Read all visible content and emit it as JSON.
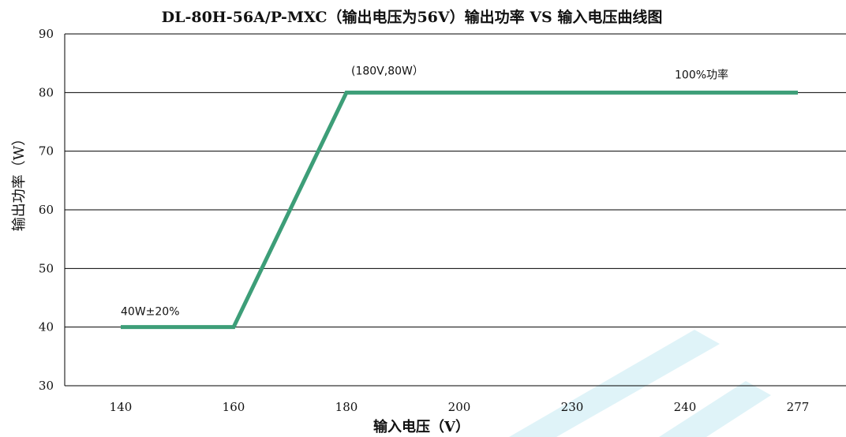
{
  "chart_data": {
    "type": "line",
    "title": "DL-80H-56A/P-MXC（输出电压为56V）输出功率 VS 输入电压曲线图",
    "xlabel": "输入电压（V）",
    "ylabel": "输出功率（W）",
    "categories": [
      "140",
      "160",
      "180",
      "200",
      "230",
      "240",
      "277"
    ],
    "ylim": [
      30,
      90
    ],
    "yticks": [
      "30",
      "40",
      "50",
      "60",
      "70",
      "80",
      "90"
    ],
    "grid": true,
    "series": [
      {
        "values": [
          {
            "x": "140",
            "y": 40
          },
          {
            "x": "160",
            "y": 40
          },
          {
            "x": "180",
            "y": 80
          },
          {
            "x": "277",
            "y": 80
          }
        ],
        "color": "#3d9e78"
      }
    ],
    "annotations": [
      {
        "text": "(180V,80W）",
        "x": "180",
        "y": 80
      },
      {
        "text": "100%功率",
        "x": "240",
        "y": 80
      },
      {
        "text": "40W±20%",
        "x": "140",
        "y": 40
      }
    ],
    "watermark_color": "#dff3f8"
  }
}
